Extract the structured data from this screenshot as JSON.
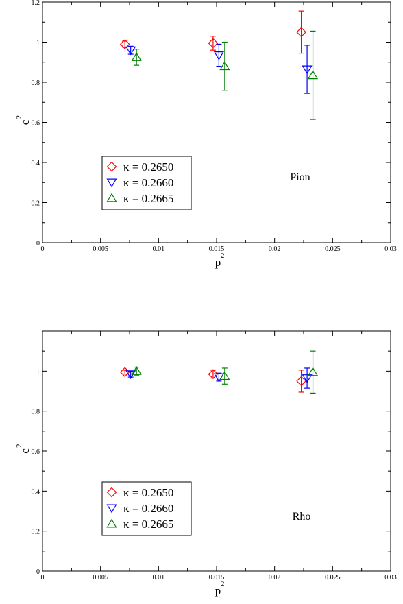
{
  "chart_data": [
    {
      "type": "scatter",
      "error_bars": true,
      "panel_label": "Pion",
      "xlabel": "p",
      "xlabel_sup": "2",
      "ylabel": "c",
      "ylabel_sup": "2",
      "xlim": [
        0,
        0.03
      ],
      "ylim": [
        0,
        1.2
      ],
      "xticks": [
        0,
        0.005,
        0.01,
        0.015,
        0.02,
        0.025,
        0.03
      ],
      "xtick_labels": [
        "0",
        "0.005",
        "0.01",
        "0.015",
        "0.02",
        "0.025",
        "0.03"
      ],
      "yticks": [
        0,
        0.2,
        0.4,
        0.6,
        0.8,
        1,
        1.2
      ],
      "ytick_labels": [
        "0",
        "0.2",
        "0.4",
        "0.6",
        "0.8",
        "1",
        "1.2"
      ],
      "legend_position": "lower-left",
      "grid": false,
      "series": [
        {
          "name": "κ = 0.2650",
          "marker": "diamond",
          "color": "#ff0000",
          "points": [
            {
              "x": 0.0071,
              "y": 0.99,
              "err": 0.015
            },
            {
              "x": 0.0147,
              "y": 0.995,
              "err": 0.035
            },
            {
              "x": 0.0223,
              "y": 1.05,
              "err": 0.105
            }
          ]
        },
        {
          "name": "κ = 0.2660",
          "marker": "triangle-down",
          "color": "#0000ff",
          "points": [
            {
              "x": 0.0076,
              "y": 0.96,
              "err": 0.02
            },
            {
              "x": 0.0152,
              "y": 0.935,
              "err": 0.055
            },
            {
              "x": 0.0228,
              "y": 0.865,
              "err": 0.12
            }
          ]
        },
        {
          "name": "κ = 0.2665",
          "marker": "triangle-up",
          "color": "#008000",
          "points": [
            {
              "x": 0.0081,
              "y": 0.925,
              "err": 0.04
            },
            {
              "x": 0.0157,
              "y": 0.88,
              "err": 0.12
            },
            {
              "x": 0.0233,
              "y": 0.835,
              "err": 0.22
            }
          ]
        }
      ]
    },
    {
      "type": "scatter",
      "error_bars": true,
      "panel_label": "Rho",
      "xlabel": "p",
      "xlabel_sup": "2",
      "ylabel": "c",
      "ylabel_sup": "2",
      "xlim": [
        0,
        0.03
      ],
      "ylim": [
        0,
        1.2
      ],
      "xticks": [
        0,
        0.005,
        0.01,
        0.015,
        0.02,
        0.025,
        0.03
      ],
      "xtick_labels": [
        "0",
        "0.005",
        "0.01",
        "0.015",
        "0.02",
        "0.025",
        "0.03"
      ],
      "yticks": [
        0,
        0.2,
        0.4,
        0.6,
        0.8,
        1
      ],
      "ytick_labels": [
        "0",
        "0.2",
        "0.4",
        "0.6",
        "0.8",
        "1"
      ],
      "legend_position": "lower-left",
      "grid": false,
      "series": [
        {
          "name": "κ = 0.2650",
          "marker": "diamond",
          "color": "#ff0000",
          "points": [
            {
              "x": 0.0071,
              "y": 0.995,
              "err": 0.01
            },
            {
              "x": 0.0147,
              "y": 0.985,
              "err": 0.02
            },
            {
              "x": 0.0223,
              "y": 0.95,
              "err": 0.055
            }
          ]
        },
        {
          "name": "κ = 0.2660",
          "marker": "triangle-down",
          "color": "#0000ff",
          "points": [
            {
              "x": 0.0076,
              "y": 0.985,
              "err": 0.015
            },
            {
              "x": 0.0152,
              "y": 0.97,
              "err": 0.02
            },
            {
              "x": 0.0228,
              "y": 0.965,
              "err": 0.05
            }
          ]
        },
        {
          "name": "κ = 0.2665",
          "marker": "triangle-up",
          "color": "#008000",
          "points": [
            {
              "x": 0.0081,
              "y": 1.0,
              "err": 0.02
            },
            {
              "x": 0.0157,
              "y": 0.975,
              "err": 0.04
            },
            {
              "x": 0.0233,
              "y": 0.995,
              "err": 0.105
            }
          ]
        }
      ]
    }
  ]
}
